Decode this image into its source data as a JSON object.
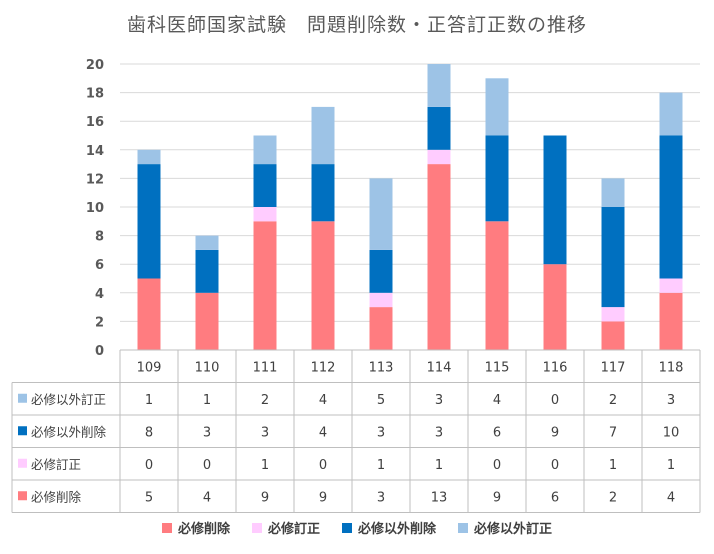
{
  "chart_data": {
    "type": "bar",
    "stacked": true,
    "title": "歯科医師国家試験　問題削除数・正答訂正数の推移",
    "categories": [
      "109",
      "110",
      "111",
      "112",
      "113",
      "114",
      "115",
      "116",
      "117",
      "118"
    ],
    "ylim": [
      0,
      20
    ],
    "yticks": [
      0,
      2,
      4,
      6,
      8,
      10,
      12,
      14,
      16,
      18,
      20
    ],
    "grid": true,
    "series": [
      {
        "name": "必修削除",
        "color": "#FF7C80",
        "values": [
          5,
          4,
          9,
          9,
          3,
          13,
          9,
          6,
          2,
          4
        ]
      },
      {
        "name": "必修訂正",
        "color": "#FFCCFF",
        "values": [
          0,
          0,
          1,
          0,
          1,
          1,
          0,
          0,
          1,
          1
        ]
      },
      {
        "name": "必修以外削除",
        "color": "#0070C0",
        "values": [
          8,
          3,
          3,
          4,
          3,
          3,
          6,
          9,
          7,
          10
        ]
      },
      {
        "name": "必修以外訂正",
        "color": "#9DC3E6",
        "values": [
          1,
          1,
          2,
          4,
          5,
          3,
          4,
          0,
          2,
          3
        ]
      }
    ],
    "table_row_order": [
      "必修以外訂正",
      "必修以外削除",
      "必修訂正",
      "必修削除"
    ],
    "legend_position": "bottom"
  }
}
